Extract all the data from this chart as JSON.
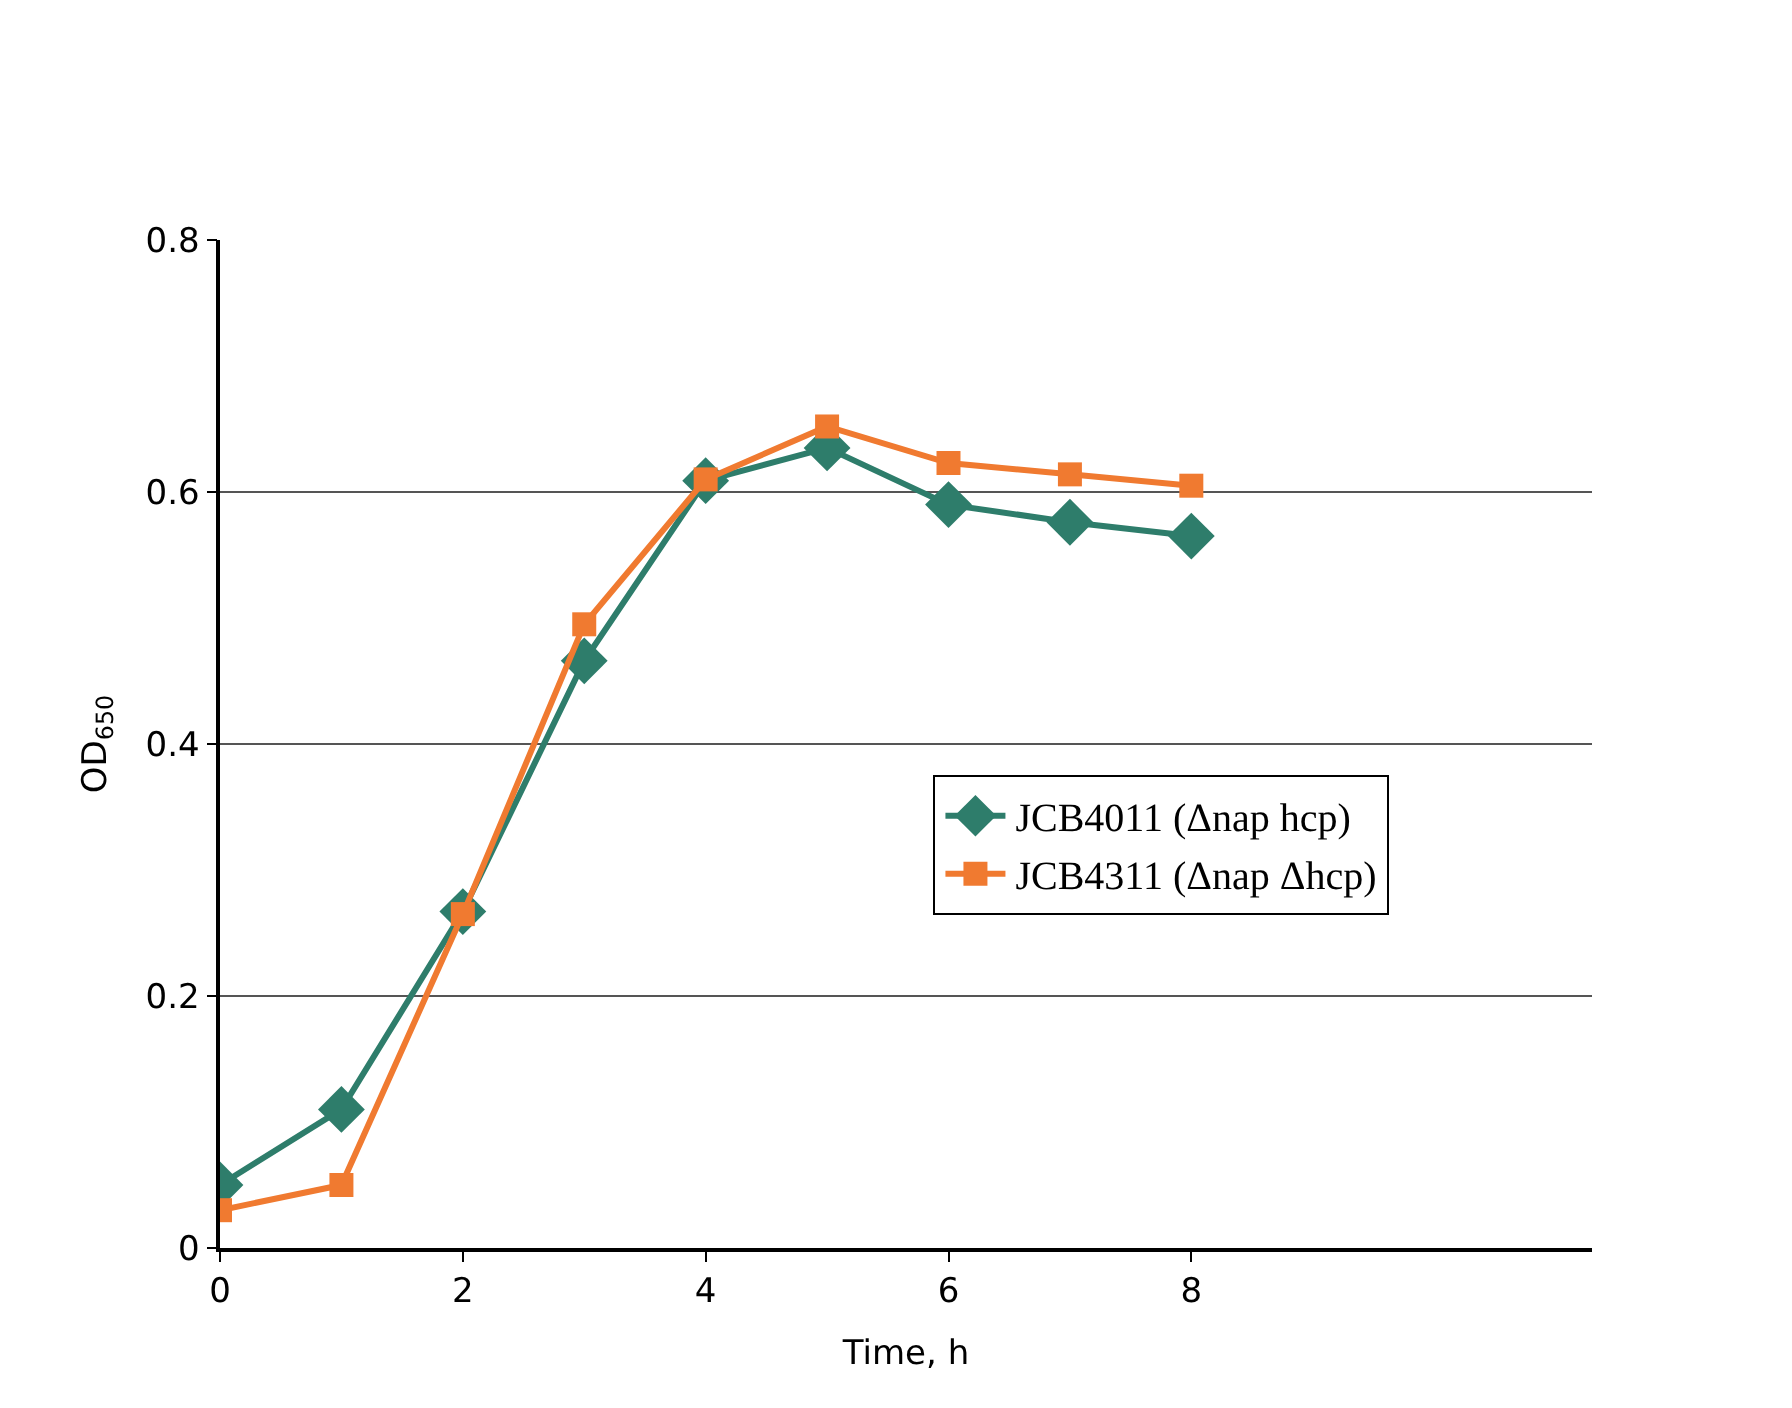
{
  "chart_data": {
    "type": "line",
    "xlabel": "Time, h",
    "ylabel": "OD$_{650}$",
    "x": [
      0,
      1,
      2,
      3,
      4,
      5,
      6,
      7,
      8
    ],
    "series": [
      {
        "name": "JCB4011 (Δnap hcp)",
        "color": "#2e7d6b",
        "marker": "diamond",
        "values": [
          0.05,
          0.11,
          0.267,
          0.466,
          0.609,
          0.635,
          0.59,
          0.576,
          0.565
        ]
      },
      {
        "name": "JCB4311 (Δnap Δhcp)",
        "color": "#f07a30",
        "marker": "square",
        "values": [
          0.03,
          0.05,
          0.265,
          0.495,
          0.61,
          0.652,
          0.623,
          0.614,
          0.605
        ]
      }
    ],
    "xlim": [
      0,
      11.3
    ],
    "xticks": [
      0,
      2,
      4,
      6,
      8
    ],
    "ylim": [
      0,
      0.8
    ],
    "yticks": [
      0,
      0.2,
      0.4,
      0.6,
      0.8
    ],
    "grid": "y",
    "legend": "right",
    "line_style": "solid"
  }
}
